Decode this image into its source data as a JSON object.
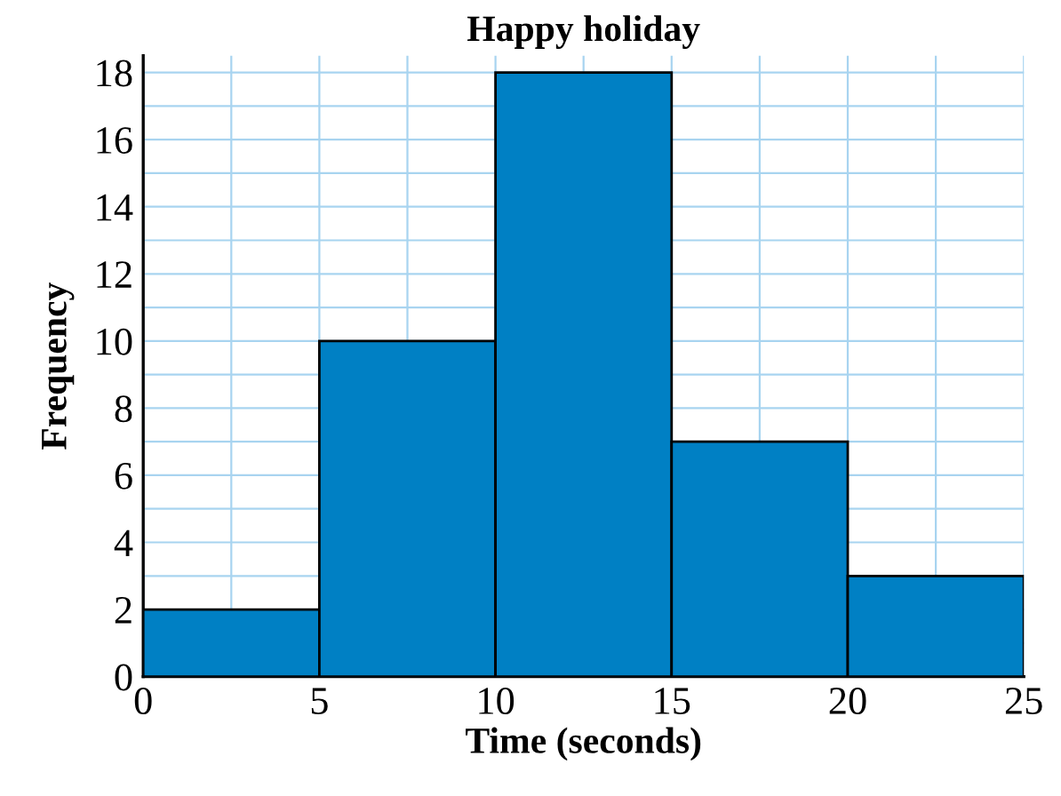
{
  "chart_data": {
    "type": "histogram",
    "title": "Happy holiday",
    "xlabel": "Time (seconds)",
    "ylabel": "Frequency",
    "bins": [
      0,
      5,
      10,
      15,
      20,
      25
    ],
    "values": [
      2,
      10,
      18,
      7,
      3
    ],
    "color": "#0080c4",
    "xlim": [
      0,
      25
    ],
    "ylim": [
      0,
      18.5
    ],
    "xticks": [
      0,
      {
        "value": 2.5,
        "label": null
      },
      5,
      {
        "value": 7.5,
        "label": null
      },
      10,
      {
        "value": 12.5,
        "label": null
      },
      15,
      {
        "value": 17.5,
        "label": null
      },
      20,
      {
        "value": 22.5,
        "label": null
      },
      25
    ],
    "yticks": [
      0,
      {
        "value": 1,
        "label": null
      },
      2,
      {
        "value": 3,
        "label": null
      },
      4,
      {
        "value": 5,
        "label": null
      },
      6,
      {
        "value": 7,
        "label": null
      },
      8,
      {
        "value": 9,
        "label": null
      },
      10,
      {
        "value": 11,
        "label": null
      },
      12,
      {
        "value": 13,
        "label": null
      },
      14,
      {
        "value": 15,
        "label": null
      },
      16,
      {
        "value": 17,
        "label": null
      },
      18
    ],
    "grid": true
  }
}
